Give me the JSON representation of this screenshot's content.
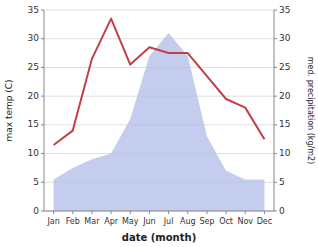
{
  "chart_data": {
    "type": "line",
    "categories": [
      "Jan",
      "Feb",
      "Mar",
      "Apr",
      "May",
      "Jun",
      "Jul",
      "Aug",
      "Sep",
      "Oct",
      "Nov",
      "Dec"
    ],
    "xlabel": "date (month)",
    "ylabel": "max temp (C)",
    "y2label": "med. precipitation (kg/m2)",
    "series": [
      {
        "type": "line",
        "color": "#c0404a",
        "values": [
          11.5,
          14.0,
          26.5,
          33.5,
          25.5,
          28.5,
          27.5,
          27.5,
          23.5,
          19.5,
          18.0,
          12.5
        ]
      },
      {
        "type": "area",
        "axis": "y2",
        "color": "#b0bce8",
        "values": [
          5.5,
          7.5,
          9.0,
          10.0,
          16.0,
          27.0,
          31.0,
          27.0,
          13.0,
          7.0,
          5.5,
          5.5
        ]
      }
    ],
    "ylim": [
      0,
      35
    ],
    "yticks": [
      0,
      5,
      10,
      15,
      20,
      25,
      30,
      35
    ],
    "y2lim": [
      0,
      35
    ],
    "y2ticks": [
      0,
      5,
      10,
      15,
      20,
      25,
      30,
      35
    ],
    "grid": true
  }
}
